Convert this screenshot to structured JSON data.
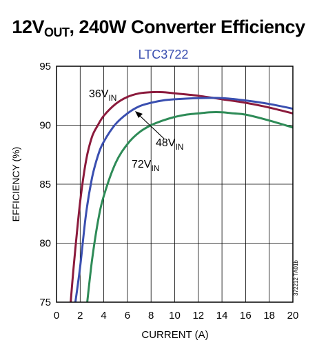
{
  "title": {
    "main": "12V",
    "sub": "OUT",
    "rest": ", 240W Converter Efficiency"
  },
  "chart_data": {
    "type": "line",
    "subtitle": "LTC3722",
    "xlabel": "CURRENT (A)",
    "ylabel": "EFFICIENCY (%)",
    "xlim": [
      0,
      20
    ],
    "ylim": [
      75,
      95
    ],
    "xticks": [
      "0",
      "2",
      "4",
      "6",
      "8",
      "10",
      "12",
      "14",
      "16",
      "18",
      "20"
    ],
    "yticks": [
      "75",
      "80",
      "85",
      "90",
      "95"
    ],
    "grid": true,
    "watermark": "372212 TA01b",
    "series": [
      {
        "name_main": "36V",
        "name_sub": "IN",
        "color": "#8b1a3c",
        "x": [
          1.2,
          1.5,
          2,
          2.5,
          3,
          3.5,
          4,
          5,
          6,
          7,
          8,
          9,
          10,
          12,
          14,
          16,
          18,
          20
        ],
        "y": [
          75,
          78.5,
          83.5,
          87,
          89,
          90,
          90.8,
          91.8,
          92.4,
          92.7,
          92.8,
          92.8,
          92.7,
          92.5,
          92.2,
          91.9,
          91.5,
          91
        ]
      },
      {
        "name_main": "48V",
        "name_sub": "IN",
        "color": "#3a4fb0",
        "x": [
          1.6,
          2,
          2.5,
          3,
          3.5,
          4,
          5,
          6,
          7,
          8,
          9,
          10,
          12,
          14,
          16,
          18,
          20
        ],
        "y": [
          75,
          78,
          82.5,
          85.5,
          87.4,
          88.6,
          90.1,
          91,
          91.6,
          91.9,
          92.1,
          92.2,
          92.3,
          92.3,
          92.1,
          91.8,
          91.4
        ]
      },
      {
        "name_main": "72V",
        "name_sub": "IN",
        "color": "#2e8b57",
        "x": [
          2.6,
          3,
          3.5,
          4,
          5,
          6,
          7,
          8,
          9,
          10,
          11,
          12,
          13,
          14,
          15,
          16,
          18,
          20
        ],
        "y": [
          75,
          78.5,
          81.8,
          84,
          86.8,
          88.4,
          89.4,
          90,
          90.4,
          90.7,
          90.9,
          91,
          91.1,
          91.1,
          91,
          90.9,
          90.4,
          89.8
        ]
      }
    ]
  }
}
